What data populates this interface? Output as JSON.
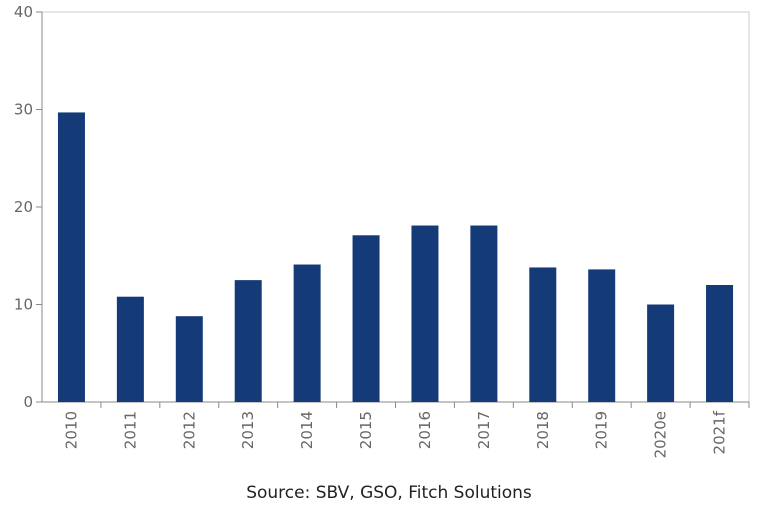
{
  "chart_data": {
    "type": "bar",
    "categories": [
      "2010",
      "2011",
      "2012",
      "2013",
      "2014",
      "2015",
      "2016",
      "2017",
      "2018",
      "2019",
      "2020e",
      "2021f"
    ],
    "values": [
      29.7,
      10.8,
      8.8,
      12.5,
      14.1,
      17.1,
      18.1,
      18.1,
      13.8,
      13.6,
      10.0,
      12.0
    ],
    "title": "",
    "xlabel": "",
    "ylabel": "",
    "ylim": [
      0,
      40
    ],
    "yticks": [
      0,
      10,
      20,
      30,
      40
    ],
    "grid": false,
    "legend": "none",
    "bar_color": "#143a78",
    "source": "Source: SBV, GSO, Fitch Solutions"
  }
}
